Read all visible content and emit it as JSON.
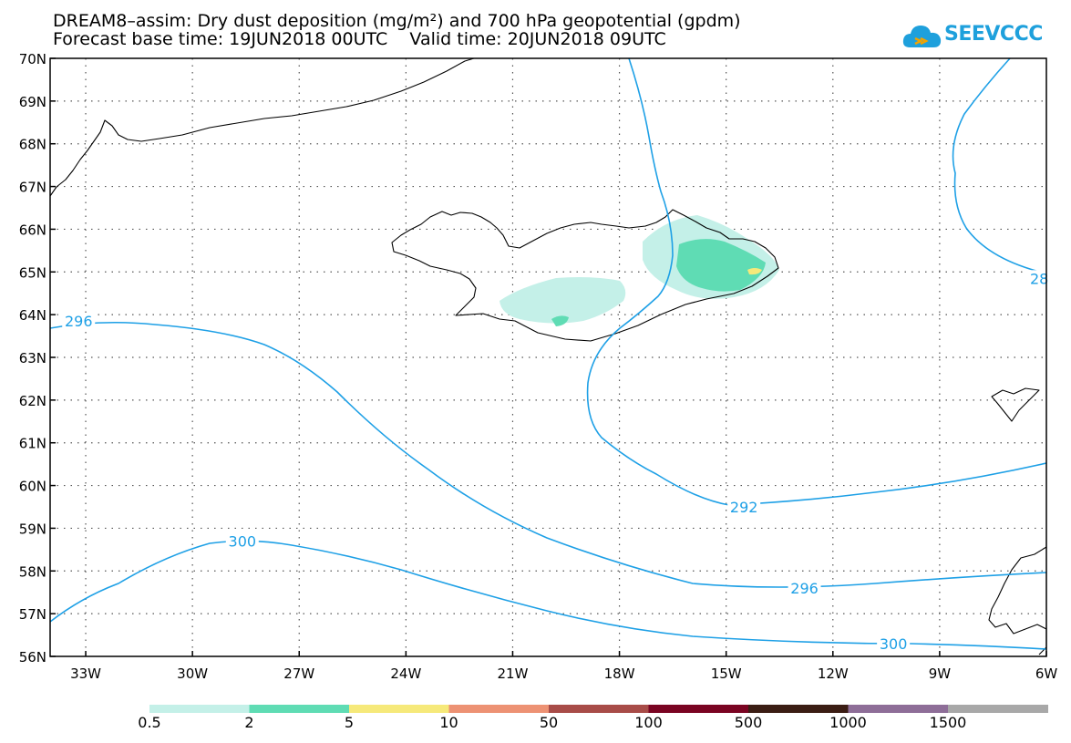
{
  "title": {
    "line1": "DREAM8–assim: Dry dust deposition (mg/m²) and 700 hPa geopotential (gpdm)",
    "line2": "Forecast base time: 19JUN2018 00UTC    Valid time: 20JUN2018 09UTC"
  },
  "logo": {
    "text": "SEEVCCC",
    "icon": "cloud-icon",
    "color": "#1ea0dc"
  },
  "map": {
    "lon_range": [
      -34.0,
      -6.0
    ],
    "lat_range": [
      56.0,
      70.0
    ],
    "lat_ticks": [
      "70N",
      "69N",
      "68N",
      "67N",
      "66N",
      "65N",
      "64N",
      "63N",
      "62N",
      "61N",
      "60N",
      "59N",
      "58N",
      "57N",
      "56N"
    ],
    "lon_ticks": [
      "33W",
      "30W",
      "27W",
      "24W",
      "21W",
      "18W",
      "15W",
      "12W",
      "9W",
      "6W"
    ],
    "grid": "dotted",
    "contour_color": "#1ea0e6",
    "contour_labels": [
      {
        "text": "296",
        "lon": -33.2,
        "lat": 63.85
      },
      {
        "text": "292",
        "lon": -14.5,
        "lat": 59.5
      },
      {
        "text": "296",
        "lon": -12.8,
        "lat": 57.6
      },
      {
        "text": "300",
        "lon": -28.6,
        "lat": 58.7
      },
      {
        "text": "300",
        "lon": -10.3,
        "lat": 56.3
      },
      {
        "text": "28",
        "lon": -6.2,
        "lat": 64.85
      }
    ]
  },
  "colorbar": {
    "colors": [
      "#c4f0e8",
      "#5fdcb4",
      "#f6e97a",
      "#ed9274",
      "#a84c48",
      "#7a0422",
      "#3b1d14",
      "#8e6e98",
      "#a8a8a8"
    ],
    "labels": [
      "0.5",
      "2",
      "5",
      "10",
      "50",
      "100",
      "500",
      "1000",
      "1500"
    ]
  }
}
